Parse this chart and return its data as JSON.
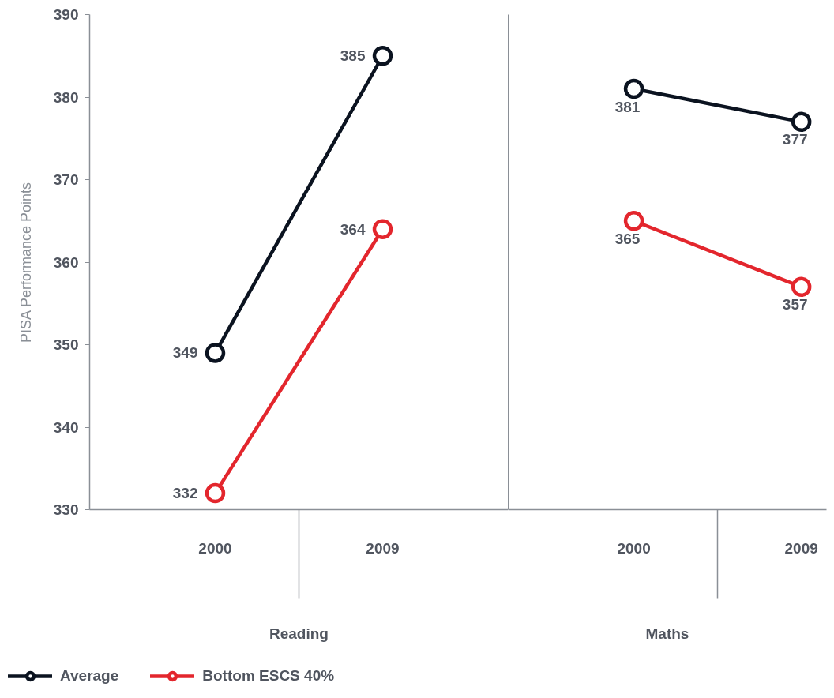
{
  "chart_data": [
    {
      "type": "line",
      "xlabel": "Reading",
      "ylabel": "PISA Performance Points",
      "categories": [
        "2000",
        "2009"
      ],
      "series": [
        {
          "name": "Average",
          "color": "#0b1320",
          "values": [
            349,
            385
          ]
        },
        {
          "name": "Bottom ESCS 40%",
          "color": "#e3262d",
          "values": [
            332,
            364
          ]
        }
      ],
      "ylim": [
        330,
        390
      ],
      "yticks": [
        330,
        340,
        350,
        360,
        370,
        380,
        390
      ],
      "data_labels": true,
      "marker": "circle",
      "line_style": "solid",
      "legend": "bottom left"
    },
    {
      "type": "line",
      "xlabel": "Maths",
      "categories": [
        "2000",
        "2009"
      ],
      "series": [
        {
          "color": "#0b1320",
          "values": [
            381,
            377
          ]
        },
        {
          "color": "#e3262d",
          "values": [
            365,
            357
          ]
        }
      ],
      "ylim": [
        330,
        390
      ],
      "tick_labels": "x",
      "data_labels": true,
      "marker": "circle",
      "line_style": "solid"
    }
  ]
}
